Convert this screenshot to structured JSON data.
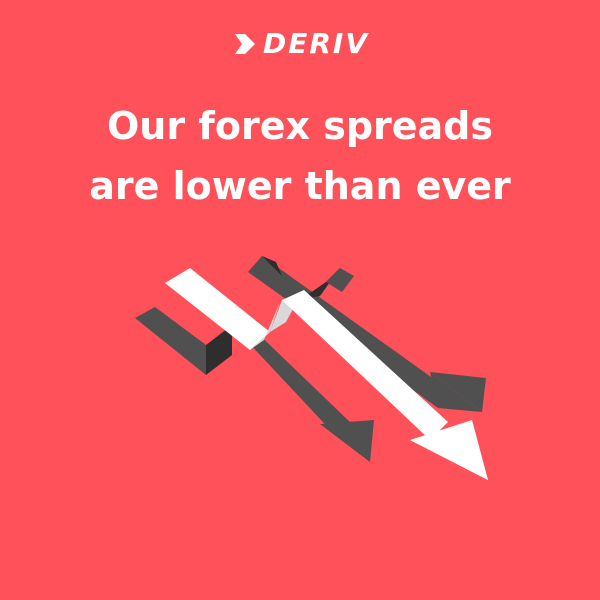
{
  "brand": {
    "name": "DERIV",
    "logo_icon": "deriv-chevron-icon"
  },
  "headline": {
    "line1": "Our forex spreads",
    "line2": "are lower than ever"
  },
  "illustration": {
    "icon": "downward-zigzag-arrows-icon",
    "colors": {
      "background": "#ff515a",
      "dark_arrow": "#505050",
      "dark_arrow_side": "#2e2e2e",
      "light_arrow": "#ffffff",
      "light_arrow_side": "#d9d9d9"
    }
  }
}
